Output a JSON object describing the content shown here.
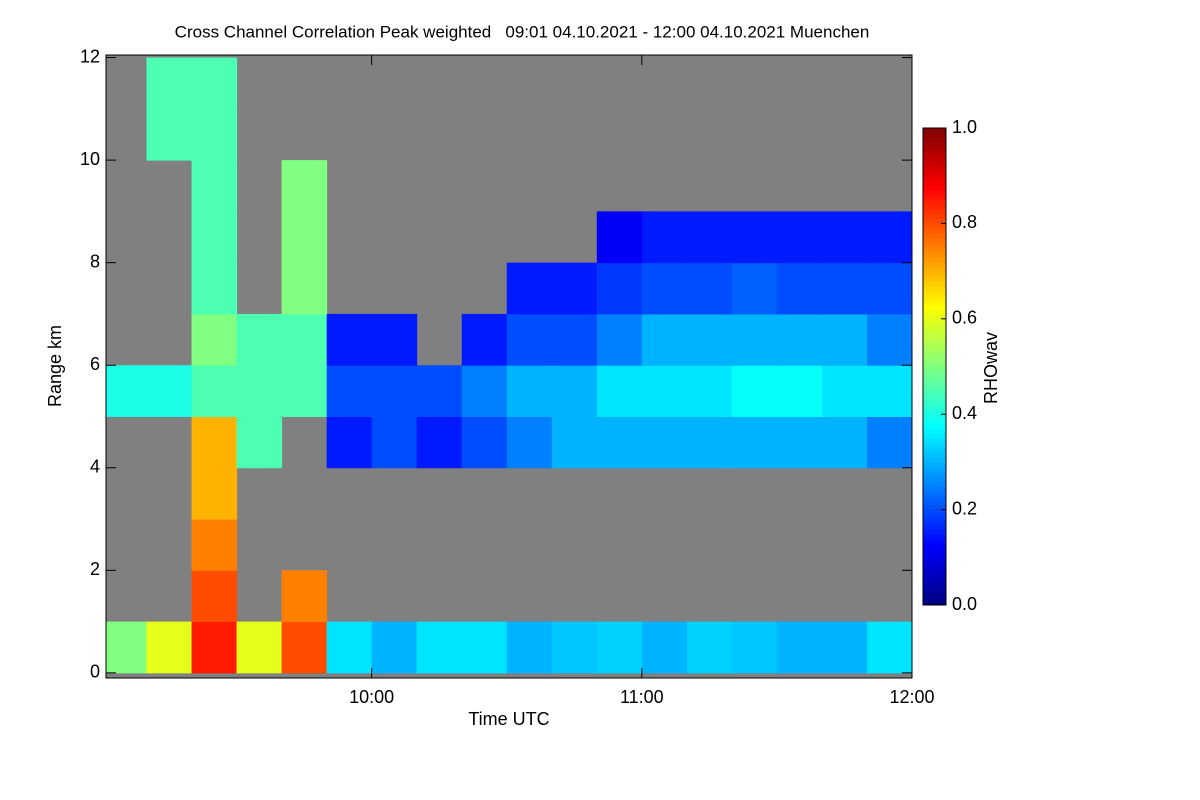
{
  "chart_data": {
    "type": "heatmap",
    "title": "Cross Channel Correlation Peak weighted   09:01 04.10.2021 - 12:00 04.10.2021 Muenchen",
    "x_label": "Time UTC",
    "y_label": "Range km",
    "colorbar_label": "RHOwav",
    "colormap": "jet",
    "missing_color": "#808080",
    "x": [
      9.0833,
      9.25,
      9.4167,
      9.5833,
      9.75,
      9.9167,
      10.0833,
      10.25,
      10.4167,
      10.5833,
      10.75,
      10.9167,
      11.0833,
      11.25,
      11.4167,
      11.5833,
      11.75,
      11.9167
    ],
    "y": [
      0.5,
      1.5,
      2.5,
      3.5,
      4.5,
      5.5,
      6.5,
      7.5,
      8.5,
      9.5,
      10.5,
      11.5
    ],
    "z": [
      [
        0.5,
        0.6,
        0.85,
        0.6,
        0.8,
        0.35,
        0.3,
        0.35,
        0.35,
        0.3,
        0.32,
        0.33,
        0.3,
        0.33,
        0.32,
        0.3,
        0.3,
        0.35
      ],
      [
        null,
        null,
        0.8,
        null,
        0.75,
        null,
        null,
        null,
        null,
        null,
        null,
        null,
        null,
        null,
        null,
        null,
        null,
        null
      ],
      [
        null,
        null,
        0.75,
        null,
        null,
        null,
        null,
        null,
        null,
        null,
        null,
        null,
        null,
        null,
        null,
        null,
        null,
        null
      ],
      [
        null,
        null,
        0.7,
        null,
        null,
        null,
        null,
        null,
        null,
        null,
        null,
        null,
        null,
        null,
        null,
        null,
        null,
        null
      ],
      [
        null,
        null,
        0.7,
        0.45,
        null,
        0.15,
        0.2,
        0.15,
        0.2,
        0.25,
        0.3,
        0.3,
        0.3,
        0.3,
        0.3,
        0.3,
        0.3,
        0.25
      ],
      [
        0.4,
        0.4,
        0.45,
        0.45,
        0.45,
        0.2,
        0.2,
        0.2,
        0.25,
        0.3,
        0.3,
        0.35,
        0.35,
        0.35,
        0.38,
        0.38,
        0.35,
        0.35
      ],
      [
        null,
        null,
        0.5,
        0.45,
        0.45,
        0.15,
        0.15,
        null,
        0.15,
        0.2,
        0.2,
        0.25,
        0.3,
        0.3,
        0.3,
        0.3,
        0.3,
        0.25
      ],
      [
        null,
        null,
        0.45,
        null,
        0.5,
        null,
        null,
        null,
        null,
        0.15,
        0.15,
        0.18,
        0.2,
        0.2,
        0.22,
        0.2,
        0.2,
        0.2
      ],
      [
        null,
        null,
        0.45,
        null,
        0.5,
        null,
        null,
        null,
        null,
        null,
        null,
        0.12,
        0.15,
        0.15,
        0.15,
        0.15,
        0.15,
        0.15
      ],
      [
        null,
        null,
        0.45,
        null,
        0.5,
        null,
        null,
        null,
        null,
        null,
        null,
        null,
        null,
        null,
        null,
        null,
        null,
        null
      ],
      [
        null,
        0.45,
        0.45,
        null,
        null,
        null,
        null,
        null,
        null,
        null,
        null,
        null,
        null,
        null,
        null,
        null,
        null,
        null
      ],
      [
        null,
        0.45,
        0.45,
        null,
        null,
        null,
        null,
        null,
        null,
        null,
        null,
        null,
        null,
        null,
        null,
        null,
        null,
        null
      ]
    ],
    "xlim": [
      9.0167,
      12.0
    ],
    "xticks": [
      {
        "value": 10,
        "label": "10:00"
      },
      {
        "value": 11,
        "label": "11:00"
      },
      {
        "value": 12,
        "label": "12:00"
      }
    ],
    "ylim": [
      -0.1,
      12.05
    ],
    "yticks": [
      0,
      2,
      4,
      6,
      8,
      10,
      12
    ],
    "zlim": [
      0,
      1
    ],
    "zticks": [
      {
        "value": 0,
        "label": "0.0"
      },
      {
        "value": 0.2,
        "label": "0.2"
      },
      {
        "value": 0.4,
        "label": "0.4"
      },
      {
        "value": 0.6,
        "label": "0.6"
      },
      {
        "value": 0.8,
        "label": "0.8"
      },
      {
        "value": 1,
        "label": "1.0"
      }
    ]
  }
}
